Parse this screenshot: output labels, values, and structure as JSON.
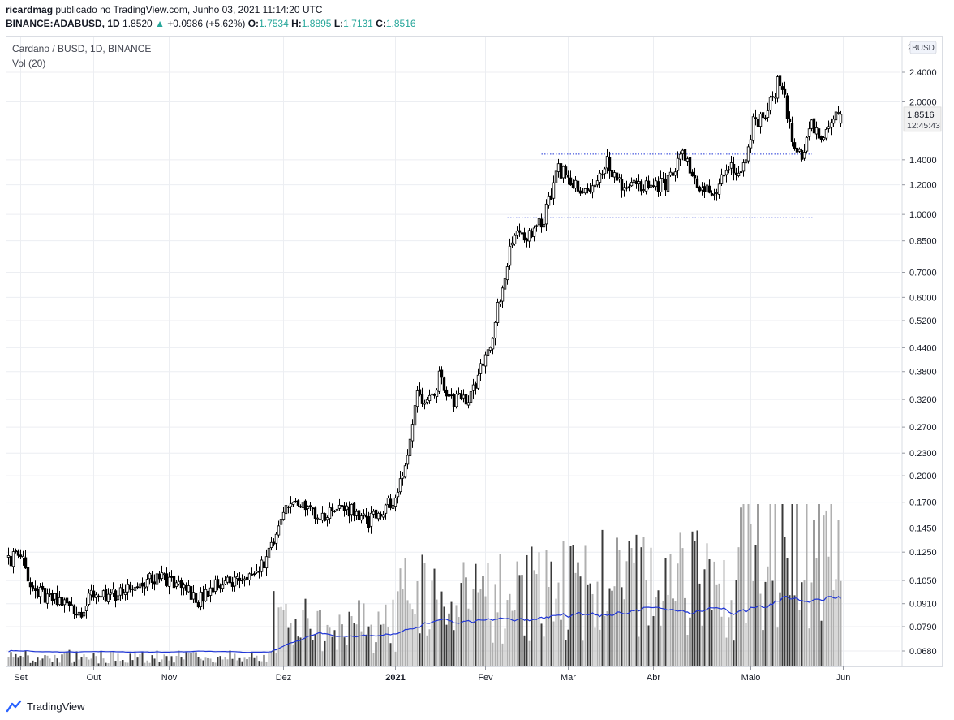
{
  "header": {
    "author": "ricardmag",
    "published_text": "publicado no TradingView.com, Junho 03, 2021 11:14:20 UTC",
    "symbol": "BINANCE:ADABUSD, 1D",
    "price": "1.8520",
    "change": "+0.0986 (+5.62%)",
    "o_label": "O:",
    "o_value": "1.7534",
    "h_label": "H:",
    "h_value": "1.8895",
    "l_label": "L:",
    "l_value": "1.7131",
    "c_label": "C:",
    "c_value": "1.8516"
  },
  "legend": {
    "series_title": "Cardano / BUSD, 1D, BINANCE",
    "volume_title": "Vol (20)"
  },
  "price_badge": {
    "value": "1.8516",
    "countdown": "12:45:43"
  },
  "currency_badge": "BUSD",
  "footer": {
    "brand": "TradingView"
  },
  "colors": {
    "candle": "#000000",
    "volume": "#9e9e9e",
    "volume_ma": "#2036d6",
    "support_line": "#2036d6",
    "up": "#26a69a"
  },
  "chart_data": {
    "type": "candlestick",
    "title": "Cardano / BUSD, 1D, BINANCE",
    "y_scale": "log",
    "y_ticks": [
      "2.4000",
      "2.0000",
      "1.4000",
      "1.2000",
      "1.0000",
      "0.8500",
      "0.7000",
      "0.6000",
      "0.5200",
      "0.4400",
      "0.3800",
      "0.3200",
      "0.2700",
      "0.2300",
      "0.2000",
      "0.1700",
      "0.1450",
      "0.1250",
      "0.1050",
      "0.0910",
      "0.0790",
      "0.0680"
    ],
    "x_ticks": [
      "Set",
      "Out",
      "Nov",
      "Dez",
      "2021",
      "Fev",
      "Mar",
      "Abr",
      "Maio",
      "Jun"
    ],
    "anchors": [
      {
        "d": 0,
        "p": 0.118
      },
      {
        "d": 5,
        "p": 0.126
      },
      {
        "d": 10,
        "p": 0.098
      },
      {
        "d": 22,
        "p": 0.092
      },
      {
        "d": 30,
        "p": 0.082
      },
      {
        "d": 33,
        "p": 0.097
      },
      {
        "d": 42,
        "p": 0.095
      },
      {
        "d": 55,
        "p": 0.105
      },
      {
        "d": 65,
        "p": 0.106
      },
      {
        "d": 72,
        "p": 0.1
      },
      {
        "d": 78,
        "p": 0.092
      },
      {
        "d": 85,
        "p": 0.104
      },
      {
        "d": 95,
        "p": 0.106
      },
      {
        "d": 102,
        "p": 0.108
      },
      {
        "d": 108,
        "p": 0.13
      },
      {
        "d": 113,
        "p": 0.16
      },
      {
        "d": 120,
        "p": 0.168
      },
      {
        "d": 130,
        "p": 0.156
      },
      {
        "d": 140,
        "p": 0.162
      },
      {
        "d": 148,
        "p": 0.151
      },
      {
        "d": 152,
        "p": 0.16
      },
      {
        "d": 158,
        "p": 0.174
      },
      {
        "d": 163,
        "p": 0.21
      },
      {
        "d": 168,
        "p": 0.335
      },
      {
        "d": 172,
        "p": 0.31
      },
      {
        "d": 177,
        "p": 0.366
      },
      {
        "d": 183,
        "p": 0.315
      },
      {
        "d": 190,
        "p": 0.328
      },
      {
        "d": 198,
        "p": 0.45
      },
      {
        "d": 202,
        "p": 0.6
      },
      {
        "d": 208,
        "p": 0.9
      },
      {
        "d": 214,
        "p": 0.88
      },
      {
        "d": 220,
        "p": 0.98
      },
      {
        "d": 226,
        "p": 1.33
      },
      {
        "d": 232,
        "p": 1.2
      },
      {
        "d": 240,
        "p": 1.15
      },
      {
        "d": 246,
        "p": 1.38
      },
      {
        "d": 252,
        "p": 1.2
      },
      {
        "d": 260,
        "p": 1.18
      },
      {
        "d": 270,
        "p": 1.2
      },
      {
        "d": 277,
        "p": 1.42
      },
      {
        "d": 283,
        "p": 1.22
      },
      {
        "d": 289,
        "p": 1.14
      },
      {
        "d": 296,
        "p": 1.32
      },
      {
        "d": 302,
        "p": 1.33
      },
      {
        "d": 306,
        "p": 1.75
      },
      {
        "d": 311,
        "p": 1.8
      },
      {
        "d": 316,
        "p": 2.25
      },
      {
        "d": 319,
        "p": 2.05
      },
      {
        "d": 322,
        "p": 1.55
      },
      {
        "d": 326,
        "p": 1.45
      },
      {
        "d": 330,
        "p": 1.75
      },
      {
        "d": 334,
        "p": 1.52
      },
      {
        "d": 338,
        "p": 1.75
      },
      {
        "d": 342,
        "p": 1.852
      }
    ],
    "volume_ma_level_range": [
      0.06,
      0.46
    ],
    "support_lines": [
      {
        "price": 1.45,
        "from_day": 219,
        "to_day": 330
      },
      {
        "price": 0.98,
        "from_day": 205,
        "to_day": 331
      }
    ]
  }
}
